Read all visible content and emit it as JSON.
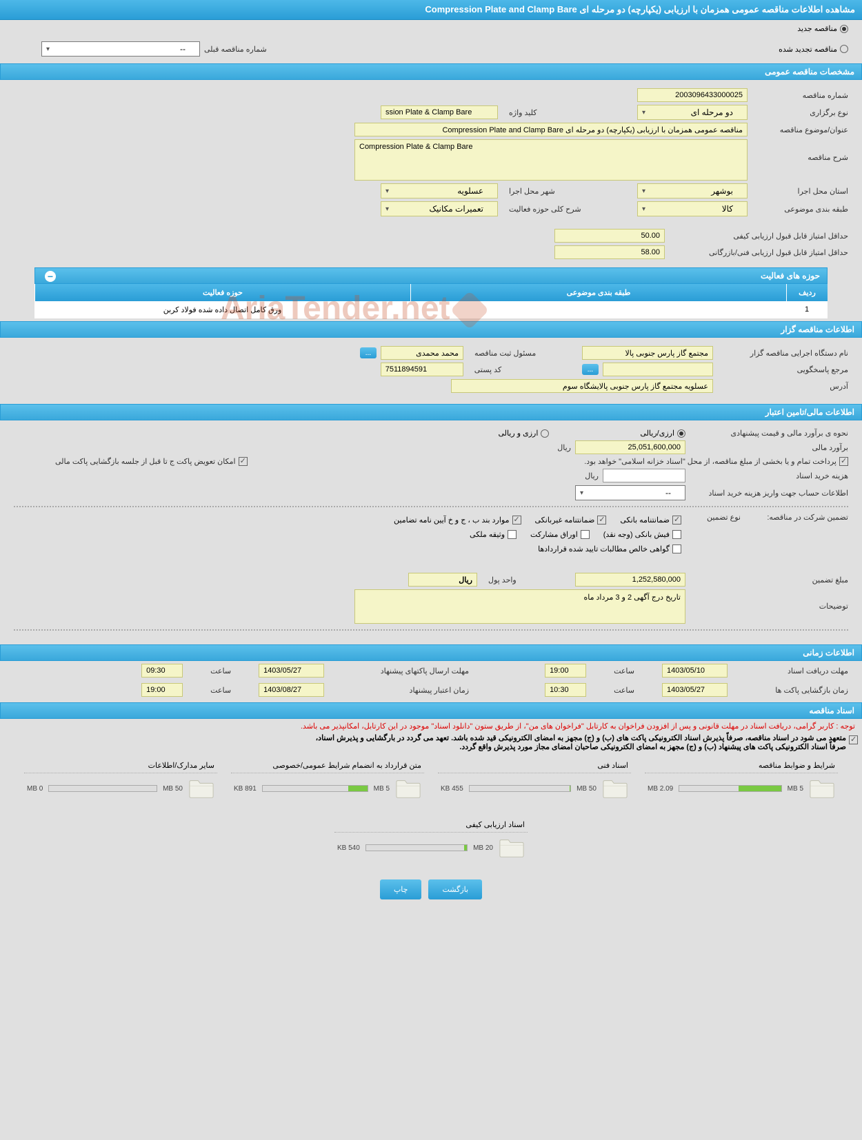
{
  "header_title": "مشاهده اطلاعات مناقصه عمومی همزمان با ارزیابی (یکپارچه) دو مرحله ای Compression Plate and Clamp Bare",
  "tender_status": {
    "new_label": "مناقصه جدید",
    "renewed_label": "مناقصه تجدید شده",
    "prev_number_label": "شماره مناقصه قبلی",
    "prev_number_value": "--"
  },
  "sections": {
    "general": "مشخصات مناقصه عمومی",
    "client": "اطلاعات مناقصه گزار",
    "financial": "اطلاعات مالی/تامین اعتبار",
    "timing": "اطلاعات زمانی",
    "documents": "اسناد مناقصه"
  },
  "general": {
    "tender_number_label": "شماره مناقصه",
    "tender_number": "2003096433000025",
    "holding_type_label": "نوع برگزاری",
    "holding_type": "دو مرحله ای",
    "keyword_label": "کلید واژه",
    "keyword": "ssion Plate & Clamp Bare",
    "subject_label": "عنوان/موضوع مناقصه",
    "subject": "مناقصه عمومی همزمان با ارزیابی (یکپارچه) دو مرحله ای Compression Plate and Clamp Bare",
    "description_label": "شرح مناقصه",
    "description": "Compression Plate & Clamp Bare",
    "province_label": "استان محل اجرا",
    "province": "بوشهر",
    "city_label": "شهر محل اجرا",
    "city": "عسلویه",
    "category_label": "طبقه بندی موضوعی",
    "category": "کالا",
    "activity_desc_label": "شرح کلی حوزه فعالیت",
    "activity_desc": "تعمیرات مکانیک",
    "min_quality_label": "حداقل امتیاز قابل قبول ارزیابی کیفی",
    "min_quality": "50.00",
    "min_tech_label": "حداقل امتیاز قابل قبول ارزیابی فنی/بازرگانی",
    "min_tech": "58.00"
  },
  "activity_table": {
    "title": "حوزه های فعالیت",
    "col_row": "ردیف",
    "col_category": "طبقه بندی موضوعی",
    "col_activity": "حوزه فعالیت",
    "row1_num": "1",
    "row1_cat": "",
    "row1_act": "ورق کامل اتصال داده شده فولاد کربن"
  },
  "client": {
    "agency_label": "نام دستگاه اجرایی مناقصه گزار",
    "agency": "مجتمع گاز پارس جنوبی  پالا",
    "responsible_label": "مسئول ثبت مناقصه",
    "responsible": "محمد محمدی",
    "response_ref_label": "مرجع پاسخگویی",
    "response_ref": "",
    "postal_label": "کد پستی",
    "postal": "7511894591",
    "address_label": "آدرس",
    "address": "عسلویه مجتمع گاز پارس جنوبی پالایشگاه سوم",
    "btn_dots": "..."
  },
  "financial": {
    "estimate_method_label": "نحوه ی برآورد مالی و قیمت پیشنهادی",
    "rial_label": "ارزی/ریالی",
    "both_label": "ارزی و ریالی",
    "estimate_label": "برآورد مالی",
    "estimate_value": "25,051,600,000",
    "currency": "ریال",
    "payment_note": "پرداخت تمام و یا بخشی از مبلغ مناقصه، از محل \"اسناد خزانه اسلامی\" خواهد بود.",
    "replace_note": "امکان تعویض پاکت ج تا قبل از جلسه بازگشایی پاکت مالی",
    "doc_fee_label": "هزینه خرید اسناد",
    "doc_fee": "",
    "account_info_label": "اطلاعات حساب جهت واریز هزینه خرید اسناد",
    "account_info": "--",
    "guarantee_label": "تضمین شرکت در مناقصه:",
    "guarantee_type_label": "نوع تضمین",
    "chk_bank": "ضمانتنامه بانکی",
    "chk_nonbank": "ضمانتنامه غیربانکی",
    "chk_clauses": "موارد بند ب ، ج و خ آیین نامه تضامین",
    "chk_cash": "فیش بانکی (وجه نقد)",
    "chk_bonds": "اوراق مشارکت",
    "chk_property": "وثیقه ملکی",
    "chk_receivables": "گواهی خالص مطالبات تایید شده قراردادها",
    "amount_label": "مبلغ تضمین",
    "amount": "1,252,580,000",
    "unit_label": "واحد پول",
    "unit": "ریال",
    "remarks_label": "توضیحات",
    "remarks": "تاریخ درج آگهی 2 و 3 مرداد ماه"
  },
  "timing": {
    "receive_deadline_label": "مهلت دریافت اسناد",
    "receive_date": "1403/05/10",
    "receive_time_label": "ساعت",
    "receive_time": "19:00",
    "submit_deadline_label": "مهلت ارسال پاکتهای پیشنهاد",
    "submit_date": "1403/05/27",
    "submit_time": "09:30",
    "opening_label": "زمان بازگشایی پاکت ها",
    "opening_date": "1403/05/27",
    "opening_time": "10:30",
    "validity_label": "زمان اعتبار پیشنهاد",
    "validity_date": "1403/08/27",
    "validity_time": "19:00"
  },
  "docs_notice": {
    "red": "توجه : کاربر گرامی، دریافت اسناد در مهلت قانونی و پس از افزودن فراخوان به کارتابل \"فراخوان های من\"، از طریق ستون \"دانلود اسناد\" موجود در این کارتابل، امکانپذیر می باشد.",
    "line1": "متعهد می شود در اسناد مناقصه، صرفاً پذیرش اسناد الکترونیکی پاکت های (ب) و (ج) مجهز به امضای الکترونیکی قید شده باشد. تعهد می گردد در بارگشایی و پذیرش اسناد،",
    "line2": "صرفاً اسناد الکترونیکی پاکت های پیشنهاد (ب) و (ج) مجهز به امضای الکترونیکی صاحبان امضای مجاز مورد پذیرش واقع گردد."
  },
  "documents": [
    {
      "title": "شرایط و ضوابط مناقصه",
      "size": "2.09 MB",
      "max": "5 MB",
      "fill_pct": 42
    },
    {
      "title": "اسناد فنی",
      "size": "455 KB",
      "max": "50 MB",
      "fill_pct": 1
    },
    {
      "title": "متن قرارداد به انضمام شرایط عمومی/خصوصی",
      "size": "891 KB",
      "max": "5 MB",
      "fill_pct": 18
    },
    {
      "title": "سایر مدارک/اطلاعات",
      "size": "0 MB",
      "max": "50 MB",
      "fill_pct": 0
    },
    {
      "title": "اسناد ارزیابی کیفی",
      "size": "540 KB",
      "max": "20 MB",
      "fill_pct": 3
    }
  ],
  "buttons": {
    "back": "بازگشت",
    "print": "چاپ"
  },
  "watermark": "AriaTender.net",
  "colors": {
    "header_bg": "#3aa8db",
    "field_bg": "#f5f5c8",
    "field_border": "#c8c878",
    "body_bg": "#e0e0e0"
  }
}
